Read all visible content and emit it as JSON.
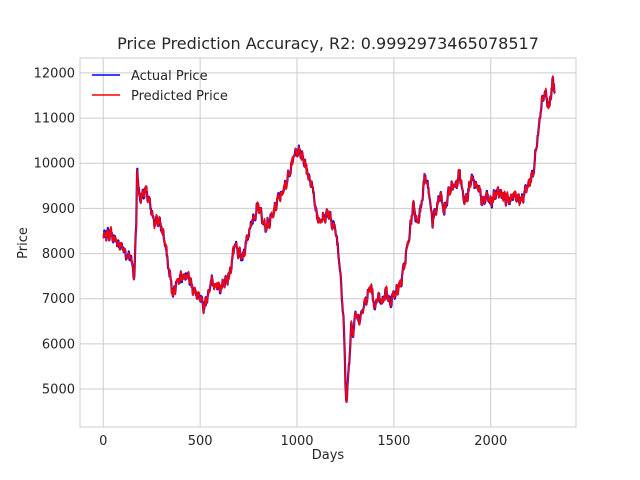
{
  "chart_data": {
    "type": "line",
    "title": "Price Prediction Accuracy, R2: 0.9992973465078517",
    "xlabel": "Days",
    "ylabel": "Price",
    "xlim": [
      -120,
      2440
    ],
    "ylim": [
      4160,
      12330
    ],
    "xticks": [
      0,
      500,
      1000,
      1500,
      2000
    ],
    "xtick_labels": [
      "0",
      "500",
      "1000",
      "1500",
      "2000"
    ],
    "yticks": [
      5000,
      6000,
      7000,
      8000,
      9000,
      10000,
      11000,
      12000
    ],
    "ytick_labels": [
      "5000",
      "6000",
      "7000",
      "8000",
      "9000",
      "10000",
      "11000",
      "12000"
    ],
    "grid": true,
    "legend": "top-left",
    "colors": {
      "actual": "#0000ff",
      "predicted": "#ff0000",
      "grid": "#cccccc",
      "axes_edge": "#cccccc",
      "text": "#262626"
    },
    "keypoints_x": [
      0,
      20,
      40,
      60,
      80,
      100,
      120,
      140,
      160,
      170,
      175,
      180,
      190,
      200,
      220,
      240,
      260,
      280,
      300,
      320,
      340,
      360,
      380,
      400,
      420,
      440,
      460,
      480,
      500,
      520,
      540,
      560,
      580,
      600,
      620,
      650,
      680,
      700,
      720,
      740,
      760,
      780,
      800,
      820,
      840,
      860,
      880,
      900,
      920,
      940,
      960,
      980,
      1000,
      1020,
      1040,
      1060,
      1080,
      1100,
      1120,
      1140,
      1160,
      1180,
      1200,
      1220,
      1240,
      1250,
      1255,
      1260,
      1265,
      1270,
      1280,
      1290,
      1300,
      1320,
      1340,
      1360,
      1380,
      1400,
      1420,
      1440,
      1460,
      1480,
      1500,
      1520,
      1540,
      1560,
      1580,
      1600,
      1620,
      1640,
      1660,
      1680,
      1700,
      1720,
      1740,
      1760,
      1780,
      1800,
      1820,
      1840,
      1860,
      1880,
      1900,
      1920,
      1940,
      1960,
      1980,
      2000,
      2020,
      2040,
      2060,
      2080,
      2100,
      2120,
      2140,
      2160,
      2180,
      2200,
      2220,
      2240,
      2260,
      2280,
      2300,
      2320,
      2330
    ],
    "keypoints_y": [
      8350,
      8420,
      8450,
      8300,
      8200,
      8150,
      7950,
      7950,
      7500,
      8600,
      10100,
      9500,
      9200,
      9300,
      9400,
      9100,
      8700,
      8750,
      8600,
      8200,
      7600,
      7100,
      7400,
      7450,
      7550,
      7500,
      7250,
      7100,
      7000,
      6800,
      7100,
      7400,
      7300,
      7200,
      7350,
      7500,
      8200,
      8000,
      7900,
      8300,
      8600,
      8800,
      9100,
      8800,
      8600,
      8700,
      8900,
      9200,
      9300,
      9500,
      9800,
      10100,
      10300,
      10200,
      10000,
      9700,
      9500,
      8900,
      8700,
      8800,
      8900,
      8700,
      8500,
      7800,
      6600,
      5200,
      4600,
      5000,
      5300,
      5700,
      6400,
      6200,
      6700,
      6500,
      6800,
      7000,
      7300,
      6800,
      7000,
      6900,
      7200,
      6900,
      7100,
      7200,
      7400,
      7900,
      8400,
      9100,
      8700,
      9000,
      9700,
      9400,
      8700,
      9000,
      9300,
      8900,
      9300,
      9500,
      9500,
      9800,
      9200,
      9300,
      9700,
      9500,
      9400,
      9100,
      9300,
      9100,
      9300,
      9400,
      9300,
      9200,
      9200,
      9300,
      9250,
      9200,
      9400,
      9600,
      9800,
      10500,
      11300,
      11600,
      11200,
      11800,
      11600
    ],
    "series": [
      {
        "name": "Actual Price",
        "color": "#0000ff"
      },
      {
        "name": "Predicted Price",
        "color": "#ff0000"
      }
    ]
  }
}
